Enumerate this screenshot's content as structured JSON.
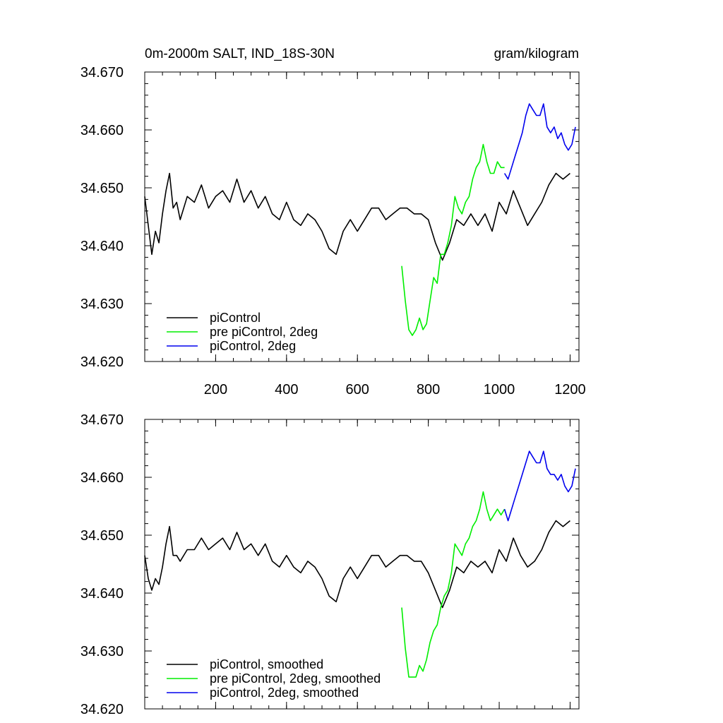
{
  "figure": {
    "title_left": "0m-2000m SALT, IND_18S-30N",
    "title_right": "gram/kilogram"
  },
  "chart_data": [
    {
      "type": "line",
      "title": "0m-2000m SALT, IND_18S-30N",
      "units": "gram/kilogram",
      "xlim": [
        0,
        1225
      ],
      "ylim": [
        34.62,
        34.67
      ],
      "xticks": [
        200,
        400,
        600,
        800,
        1000,
        1200
      ],
      "xtick_labels": [
        "200",
        "400",
        "600",
        "800",
        "1000",
        "1200"
      ],
      "yticks": [
        34.62,
        34.63,
        34.64,
        34.65,
        34.66,
        34.67
      ],
      "ytick_labels": [
        "34.620",
        "34.630",
        "34.640",
        "34.650",
        "34.660",
        "34.670"
      ],
      "series": [
        {
          "name": "piControl",
          "color": "#000000",
          "x": [
            0,
            10,
            20,
            30,
            40,
            50,
            60,
            70,
            80,
            90,
            100,
            120,
            140,
            160,
            180,
            200,
            220,
            240,
            260,
            280,
            300,
            320,
            340,
            360,
            380,
            400,
            420,
            440,
            460,
            480,
            500,
            520,
            540,
            560,
            580,
            600,
            620,
            640,
            660,
            680,
            700,
            720,
            740,
            760,
            780,
            800,
            820,
            840,
            860,
            880,
            900,
            920,
            940,
            960,
            980,
            1000,
            1020,
            1040,
            1060,
            1080,
            1100,
            1120,
            1140,
            1160,
            1180,
            1200
          ],
          "values": [
            34.6485,
            34.6435,
            34.6385,
            34.6425,
            34.6405,
            34.6455,
            34.6495,
            34.6525,
            34.6465,
            34.6475,
            34.6445,
            34.6485,
            34.6475,
            34.6505,
            34.6465,
            34.6485,
            34.6495,
            34.6475,
            34.6515,
            34.6475,
            34.6495,
            34.6465,
            34.6485,
            34.6455,
            34.6445,
            34.6475,
            34.6445,
            34.6435,
            34.6455,
            34.6445,
            34.6425,
            34.6395,
            34.6385,
            34.6425,
            34.6445,
            34.6425,
            34.6445,
            34.6465,
            34.6465,
            34.6445,
            34.6455,
            34.6465,
            34.6465,
            34.6455,
            34.6455,
            34.6445,
            34.6405,
            34.6375,
            34.6405,
            34.6445,
            34.6435,
            34.6455,
            34.6435,
            34.6455,
            34.6425,
            34.6475,
            34.6455,
            34.6495,
            34.6465,
            34.6435,
            34.6455,
            34.6475,
            34.6505,
            34.6525,
            34.6515,
            34.6525
          ]
        },
        {
          "name": "pre piControl, 2deg",
          "color": "#00ee00",
          "x": [
            725,
            735,
            745,
            755,
            765,
            775,
            785,
            795,
            805,
            815,
            825,
            835,
            845,
            855,
            865,
            875,
            885,
            895,
            905,
            915,
            925,
            935,
            945,
            955,
            965,
            975,
            985,
            995,
            1005,
            1015
          ],
          "values": [
            34.6365,
            34.6305,
            34.6255,
            34.6245,
            34.6255,
            34.6275,
            34.6255,
            34.6265,
            34.6305,
            34.6345,
            34.6335,
            34.6385,
            34.6385,
            34.6405,
            34.6435,
            34.6485,
            34.6465,
            34.6455,
            34.6475,
            34.6485,
            34.6515,
            34.6535,
            34.6545,
            34.6575,
            34.6545,
            34.6525,
            34.6525,
            34.6545,
            34.6535,
            34.6535
          ]
        },
        {
          "name": "piControl, 2deg",
          "color": "#0000ee",
          "x": [
            1015,
            1025,
            1035,
            1045,
            1055,
            1065,
            1075,
            1085,
            1095,
            1105,
            1115,
            1125,
            1135,
            1145,
            1155,
            1165,
            1175,
            1185,
            1195,
            1205,
            1215
          ],
          "values": [
            34.6525,
            34.6515,
            34.6535,
            34.6555,
            34.6575,
            34.6595,
            34.6625,
            34.6645,
            34.6635,
            34.6625,
            34.6625,
            34.6645,
            34.6605,
            34.6595,
            34.6605,
            34.6585,
            34.6595,
            34.6575,
            34.6565,
            34.6575,
            34.6605
          ]
        }
      ],
      "legend": {
        "location": "bottom-left",
        "entries": [
          "piControl",
          "pre piControl, 2deg",
          "piControl, 2deg"
        ]
      }
    },
    {
      "type": "line",
      "xlim": [
        0,
        1225
      ],
      "ylim": [
        34.62,
        34.67
      ],
      "xticks": [
        200,
        400,
        600,
        800,
        1000,
        1200
      ],
      "yticks": [
        34.62,
        34.63,
        34.64,
        34.65,
        34.66,
        34.67
      ],
      "ytick_labels": [
        "34.620",
        "34.630",
        "34.640",
        "34.650",
        "34.660",
        "34.670"
      ],
      "series": [
        {
          "name": "piControl, smoothed",
          "color": "#000000",
          "x": [
            0,
            10,
            20,
            30,
            40,
            50,
            60,
            70,
            80,
            90,
            100,
            120,
            140,
            160,
            180,
            200,
            220,
            240,
            260,
            280,
            300,
            320,
            340,
            360,
            380,
            400,
            420,
            440,
            460,
            480,
            500,
            520,
            540,
            560,
            580,
            600,
            620,
            640,
            660,
            680,
            700,
            720,
            740,
            760,
            780,
            800,
            820,
            840,
            860,
            880,
            900,
            920,
            940,
            960,
            980,
            1000,
            1020,
            1040,
            1060,
            1080,
            1100,
            1120,
            1140,
            1160,
            1180,
            1200
          ],
          "values": [
            34.6465,
            34.6425,
            34.6405,
            34.6425,
            34.6415,
            34.6445,
            34.6485,
            34.6515,
            34.6465,
            34.6465,
            34.6455,
            34.6475,
            34.6475,
            34.6495,
            34.6475,
            34.6485,
            34.6495,
            34.6475,
            34.6505,
            34.6475,
            34.6485,
            34.6465,
            34.6485,
            34.6455,
            34.6445,
            34.6465,
            34.6445,
            34.6435,
            34.6455,
            34.6445,
            34.6425,
            34.6395,
            34.6385,
            34.6425,
            34.6445,
            34.6425,
            34.6445,
            34.6465,
            34.6465,
            34.6445,
            34.6455,
            34.6465,
            34.6465,
            34.6455,
            34.6455,
            34.6435,
            34.6405,
            34.6375,
            34.6405,
            34.6445,
            34.6435,
            34.6455,
            34.6445,
            34.6455,
            34.6435,
            34.6475,
            34.6455,
            34.6495,
            34.6465,
            34.6445,
            34.6455,
            34.6475,
            34.6505,
            34.6525,
            34.6515,
            34.6525
          ]
        },
        {
          "name": "pre piControl, 2deg, smoothed",
          "color": "#00ee00",
          "x": [
            725,
            735,
            745,
            755,
            765,
            775,
            785,
            795,
            805,
            815,
            825,
            835,
            845,
            855,
            865,
            875,
            885,
            895,
            905,
            915,
            925,
            935,
            945,
            955,
            965,
            975,
            985,
            995,
            1005,
            1015
          ],
          "values": [
            34.6375,
            34.6305,
            34.6255,
            34.6255,
            34.6255,
            34.6275,
            34.6265,
            34.6285,
            34.6315,
            34.6335,
            34.6345,
            34.6375,
            34.6395,
            34.6405,
            34.6435,
            34.6485,
            34.6475,
            34.6465,
            34.6485,
            34.6495,
            34.6515,
            34.6525,
            34.6545,
            34.6575,
            34.6545,
            34.6525,
            34.6535,
            34.6545,
            34.6535,
            34.6545
          ]
        },
        {
          "name": "piControl, 2deg, smoothed",
          "color": "#0000ee",
          "x": [
            1015,
            1025,
            1035,
            1045,
            1055,
            1065,
            1075,
            1085,
            1095,
            1105,
            1115,
            1125,
            1135,
            1145,
            1155,
            1165,
            1175,
            1185,
            1195,
            1205,
            1215
          ],
          "values": [
            34.6545,
            34.6525,
            34.6545,
            34.6565,
            34.6585,
            34.6605,
            34.6625,
            34.6645,
            34.6635,
            34.6625,
            34.6625,
            34.6645,
            34.6615,
            34.6605,
            34.6605,
            34.6595,
            34.6605,
            34.6585,
            34.6575,
            34.6585,
            34.6615
          ]
        }
      ],
      "legend": {
        "location": "bottom-left",
        "entries": [
          "piControl, smoothed",
          "pre piControl, 2deg, smoothed",
          "piControl, 2deg, smoothed"
        ]
      }
    }
  ]
}
